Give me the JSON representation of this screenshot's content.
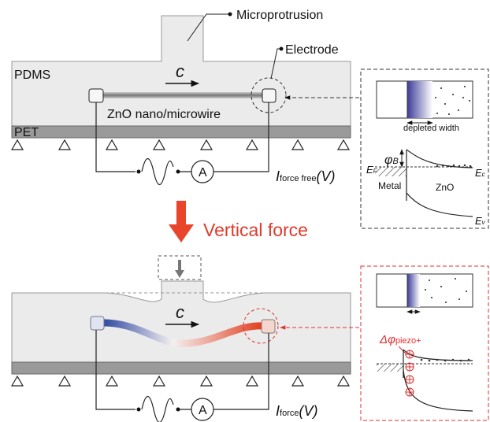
{
  "top_panel": {
    "microprotrusion": "Microprotrusion",
    "electrode": "Electrode",
    "pdms": "PDMS",
    "c": "c",
    "wire": "ZnO nano/microwire",
    "pet": "PET",
    "ammeter": "A",
    "current": {
      "symbol": "I",
      "subscript": "force free",
      "suffix": "(V)"
    }
  },
  "band_diagram_top": {
    "depleted_width": "depleted width",
    "barrier": {
      "symbol": "φ",
      "subscript": "B"
    },
    "fermi": {
      "symbol": "E",
      "subscript": "F"
    },
    "conduction": {
      "symbol": "E",
      "subscript": "c"
    },
    "valence": {
      "symbol": "E",
      "subscript": "v"
    },
    "metal": "Metal",
    "zno": "ZnO"
  },
  "transition": "Vertical force",
  "bottom_panel": {
    "c": "c",
    "ammeter": "A",
    "current": {
      "symbol": "I",
      "subscript": "force",
      "suffix": "(V)"
    }
  },
  "band_diagram_bottom": {
    "delta_phi": {
      "symbol": "Δφ",
      "subscript": "piezo+"
    }
  }
}
